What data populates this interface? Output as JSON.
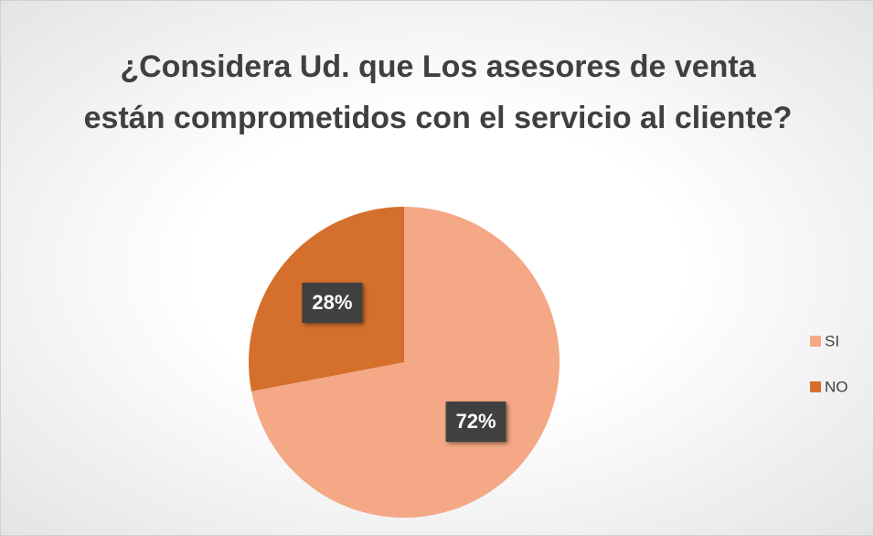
{
  "chart_data": {
    "type": "pie",
    "title": "¿Considera Ud. que Los asesores de venta están comprometidos con el servicio al cliente?",
    "categories": [
      "SI",
      "NO"
    ],
    "values": [
      72,
      28
    ],
    "value_labels": [
      "72%",
      "28%"
    ],
    "colors": [
      "#f4a886",
      "#d4702c"
    ],
    "legend": "right"
  }
}
